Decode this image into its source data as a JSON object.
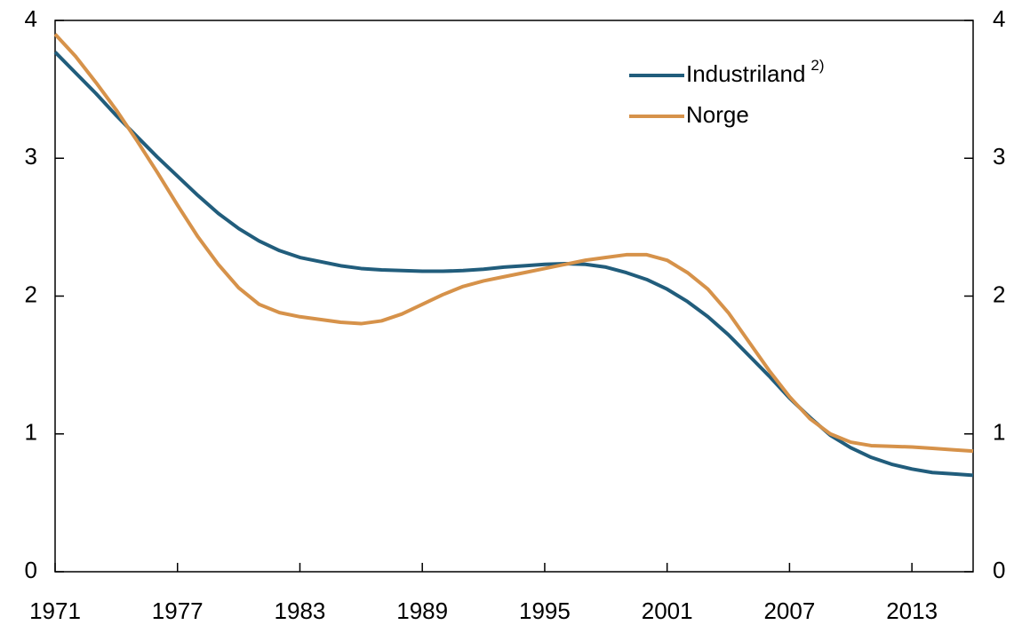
{
  "chart_data": {
    "type": "line",
    "x": [
      1971,
      1972,
      1973,
      1974,
      1975,
      1976,
      1977,
      1978,
      1979,
      1980,
      1981,
      1982,
      1983,
      1984,
      1985,
      1986,
      1987,
      1988,
      1989,
      1990,
      1991,
      1992,
      1993,
      1994,
      1995,
      1996,
      1997,
      1998,
      1999,
      2000,
      2001,
      2002,
      2003,
      2004,
      2005,
      2006,
      2007,
      2008,
      2009,
      2010,
      2011,
      2012,
      2013,
      2014,
      2015,
      2016
    ],
    "series": [
      {
        "name": "Industriland",
        "superscript": "2)",
        "color": "#215d7c",
        "values": [
          3.77,
          3.62,
          3.47,
          3.31,
          3.16,
          3.01,
          2.87,
          2.73,
          2.6,
          2.49,
          2.4,
          2.33,
          2.28,
          2.25,
          2.22,
          2.2,
          2.19,
          2.185,
          2.18,
          2.18,
          2.185,
          2.195,
          2.21,
          2.22,
          2.23,
          2.235,
          2.23,
          2.21,
          2.17,
          2.12,
          2.05,
          1.96,
          1.85,
          1.72,
          1.57,
          1.42,
          1.26,
          1.12,
          0.99,
          0.9,
          0.83,
          0.78,
          0.745,
          0.72,
          0.71,
          0.7
        ]
      },
      {
        "name": "Norge",
        "color": "#d6924a",
        "values": [
          3.9,
          3.74,
          3.55,
          3.35,
          3.13,
          2.9,
          2.66,
          2.43,
          2.23,
          2.06,
          1.94,
          1.88,
          1.85,
          1.83,
          1.81,
          1.8,
          1.82,
          1.87,
          1.94,
          2.01,
          2.07,
          2.11,
          2.14,
          2.17,
          2.2,
          2.23,
          2.26,
          2.28,
          2.3,
          2.3,
          2.26,
          2.17,
          2.05,
          1.88,
          1.67,
          1.46,
          1.27,
          1.11,
          1.0,
          0.94,
          0.915,
          0.91,
          0.905,
          0.895,
          0.885,
          0.875
        ]
      }
    ],
    "xlim": [
      1971,
      2016
    ],
    "xticks": [
      1971,
      1977,
      1983,
      1989,
      1995,
      2001,
      2007,
      2013
    ],
    "ylim": [
      0,
      4
    ],
    "yticks": [
      0,
      1,
      2,
      3,
      4
    ],
    "y2lim": [
      0,
      4
    ],
    "y2ticks": [
      0,
      1,
      2,
      3,
      4
    ],
    "legend": "top-right"
  }
}
